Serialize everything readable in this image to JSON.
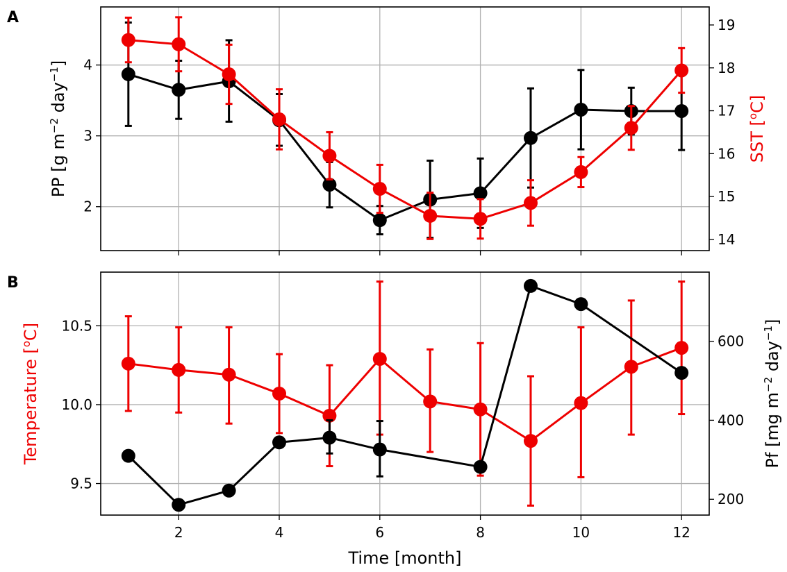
{
  "figure": {
    "xlabel": "Time [month]",
    "x_ticks": [
      "2",
      "4",
      "6",
      "8",
      "10",
      "12"
    ]
  },
  "colors": {
    "black_series": "#000000",
    "red_series": "#ee0000",
    "grid": "#b0b0b0"
  },
  "chart_data": [
    {
      "panel_label": "A",
      "type": "line",
      "x": [
        1,
        2,
        3,
        4,
        5,
        6,
        7,
        8,
        9,
        10,
        11,
        12
      ],
      "xlim": [
        0.45,
        12.55
      ],
      "left_axis": {
        "label_parts": [
          "PP [g m",
          "−2",
          " day",
          "−1",
          "]"
        ],
        "ylim": [
          1.38,
          4.82
        ],
        "ticks": [
          2,
          3,
          4
        ],
        "tick_labels": [
          "2",
          "3",
          "4"
        ]
      },
      "right_axis": {
        "label_parts": [
          "SST [",
          "o",
          "C]"
        ],
        "ylim": [
          13.74,
          19.42
        ],
        "ticks": [
          14,
          15,
          16,
          17,
          18,
          19
        ],
        "tick_labels": [
          "14",
          "15",
          "16",
          "17",
          "18",
          "19"
        ]
      },
      "series": [
        {
          "name": "PP",
          "axis": "left",
          "color": "#000000",
          "values": [
            3.87,
            3.65,
            3.77,
            3.22,
            2.31,
            1.81,
            2.1,
            2.19,
            2.97,
            3.37,
            3.35,
            3.35
          ],
          "err_low": [
            3.14,
            3.24,
            3.2,
            2.86,
            1.99,
            1.61,
            1.56,
            1.7,
            2.27,
            2.81,
            3.02,
            2.8
          ],
          "err_high": [
            4.6,
            4.06,
            4.35,
            3.59,
            2.63,
            2.01,
            2.65,
            2.68,
            3.67,
            3.93,
            3.68,
            3.9
          ]
        },
        {
          "name": "SST",
          "axis": "right",
          "color": "#ee0000",
          "values": [
            18.65,
            18.55,
            17.85,
            16.8,
            15.95,
            15.18,
            14.55,
            14.48,
            14.85,
            15.57,
            16.6,
            17.94
          ],
          "err_low": [
            18.13,
            17.92,
            17.16,
            16.1,
            15.4,
            14.62,
            14.01,
            14.02,
            14.32,
            15.22,
            16.09,
            17.42
          ],
          "err_high": [
            19.17,
            19.18,
            18.54,
            17.5,
            16.5,
            15.74,
            15.09,
            14.94,
            15.38,
            15.92,
            17.11,
            18.46
          ]
        }
      ]
    },
    {
      "panel_label": "B",
      "type": "line",
      "x": [
        1,
        2,
        3,
        4,
        5,
        6,
        7,
        8,
        9,
        10,
        11,
        12
      ],
      "xlim": [
        0.45,
        12.55
      ],
      "left_axis": {
        "label_parts": [
          "Temperature [",
          "o",
          "C]"
        ],
        "ylim": [
          9.3,
          10.84
        ],
        "ticks": [
          9.5,
          10.0,
          10.5
        ],
        "tick_labels": [
          "9.5",
          "10.0",
          "10.5"
        ]
      },
      "right_axis": {
        "label_parts": [
          "Pf [mg m",
          "−2",
          "  day",
          "−1",
          "]"
        ],
        "ylim": [
          160,
          775
        ],
        "ticks": [
          200,
          400,
          600
        ],
        "tick_labels": [
          "200",
          "400",
          "600"
        ]
      },
      "series": [
        {
          "name": "Temperature",
          "axis": "left",
          "color": "#ee0000",
          "values": [
            10.26,
            10.22,
            10.19,
            10.07,
            9.93,
            10.29,
            10.02,
            9.97,
            9.77,
            10.01,
            10.24,
            10.36
          ],
          "err_low": [
            9.96,
            9.95,
            9.88,
            9.82,
            9.61,
            9.81,
            9.7,
            9.55,
            9.36,
            9.54,
            9.81,
            9.94
          ],
          "err_high": [
            10.56,
            10.49,
            10.49,
            10.32,
            10.25,
            10.78,
            10.35,
            10.39,
            10.18,
            10.49,
            10.66,
            10.78
          ]
        },
        {
          "name": "Pf",
          "axis": "right",
          "color": "#000000",
          "x": [
            1,
            2,
            3,
            4,
            5,
            6,
            8,
            9,
            10,
            12
          ],
          "values": [
            310,
            186,
            222,
            344,
            356,
            326,
            282,
            740,
            694,
            520
          ],
          "err_x": [
            5,
            6
          ],
          "err_low": [
            316,
            258
          ],
          "err_high": [
            400,
            398
          ]
        }
      ]
    }
  ]
}
